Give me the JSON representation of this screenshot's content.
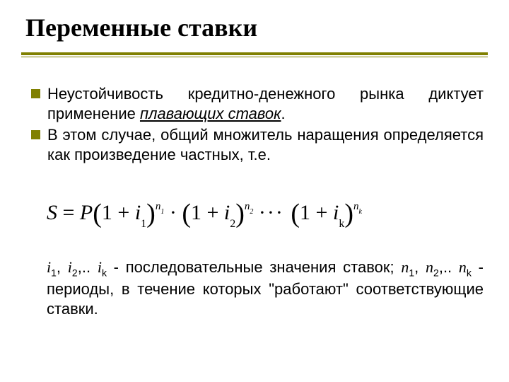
{
  "title": "Переменные ставки",
  "accent_color": "#808000",
  "bullets": [
    {
      "pre": "Неустойчивость кредитно-денежного рынка диктует применение ",
      "emph": "плавающих ставок",
      "post": "."
    },
    {
      "pre": "В этом случае, общий множитель наращения определяется как произведение частных, т.е.",
      "emph": "",
      "post": ""
    }
  ],
  "formula": {
    "lhs": "S",
    "rhs_sym": "P",
    "terms": [
      {
        "base": "i",
        "idx": "1",
        "exp_base": "n",
        "exp_idx": "1"
      },
      {
        "base": "i",
        "idx": "2",
        "exp_base": "n",
        "exp_idx": "2"
      },
      {
        "base": "i",
        "idx": "k",
        "exp_base": "n",
        "exp_idx": "k"
      }
    ]
  },
  "explain": {
    "i1": "i",
    "i2": "i",
    "ik": "i",
    "n1": "n",
    "n2": "n",
    "nk": "n",
    "txt1": " - последовательные значения ставок; ",
    "txt2": " - периоды, в течение которых \"работают\" соответствующие ставки."
  }
}
